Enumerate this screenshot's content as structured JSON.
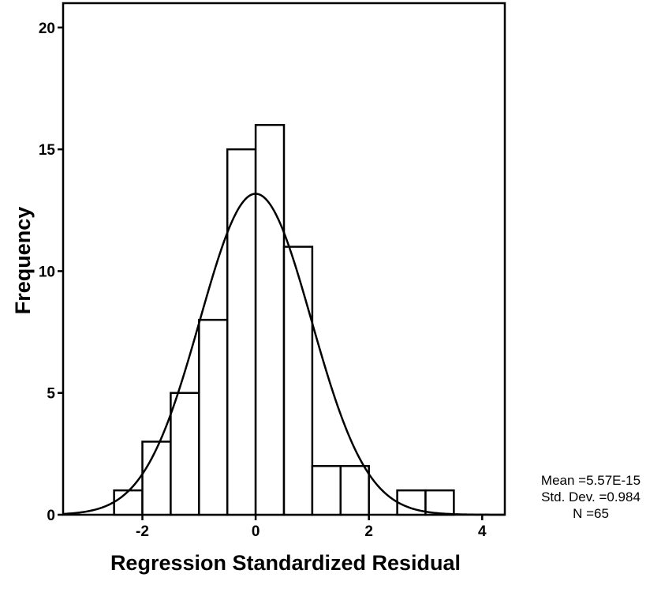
{
  "chart_data": {
    "type": "bar",
    "subtype": "histogram",
    "xlabel": "Regression Standardized Residual",
    "ylabel": "Frequency",
    "xlim": [
      -3.4,
      4.4
    ],
    "ylim": [
      0,
      21
    ],
    "xticks": [
      "-2",
      "0",
      "2",
      "4"
    ],
    "yticks": [
      "0",
      "5",
      "10",
      "15",
      "20"
    ],
    "bin_width": 0.5,
    "bins": [
      {
        "start": -2.5,
        "end": -2.0,
        "count": 1
      },
      {
        "start": -2.0,
        "end": -1.5,
        "count": 3
      },
      {
        "start": -1.5,
        "end": -1.0,
        "count": 5
      },
      {
        "start": -1.0,
        "end": -0.5,
        "count": 8
      },
      {
        "start": -0.5,
        "end": 0.0,
        "count": 15
      },
      {
        "start": 0.0,
        "end": 0.5,
        "count": 16
      },
      {
        "start": 0.5,
        "end": 1.0,
        "count": 11
      },
      {
        "start": 1.0,
        "end": 1.5,
        "count": 2
      },
      {
        "start": 1.5,
        "end": 2.0,
        "count": 2
      },
      {
        "start": 2.0,
        "end": 2.5,
        "count": 0
      },
      {
        "start": 2.5,
        "end": 3.0,
        "count": 1
      },
      {
        "start": 3.0,
        "end": 3.5,
        "count": 1
      }
    ],
    "normal_curve": {
      "mean": 0.0,
      "sd": 0.984,
      "n": 65
    },
    "grid": false,
    "legend": "none",
    "stats_text": [
      "Mean =5.57E-15",
      "Std. Dev. =0.984",
      "N =65"
    ]
  }
}
